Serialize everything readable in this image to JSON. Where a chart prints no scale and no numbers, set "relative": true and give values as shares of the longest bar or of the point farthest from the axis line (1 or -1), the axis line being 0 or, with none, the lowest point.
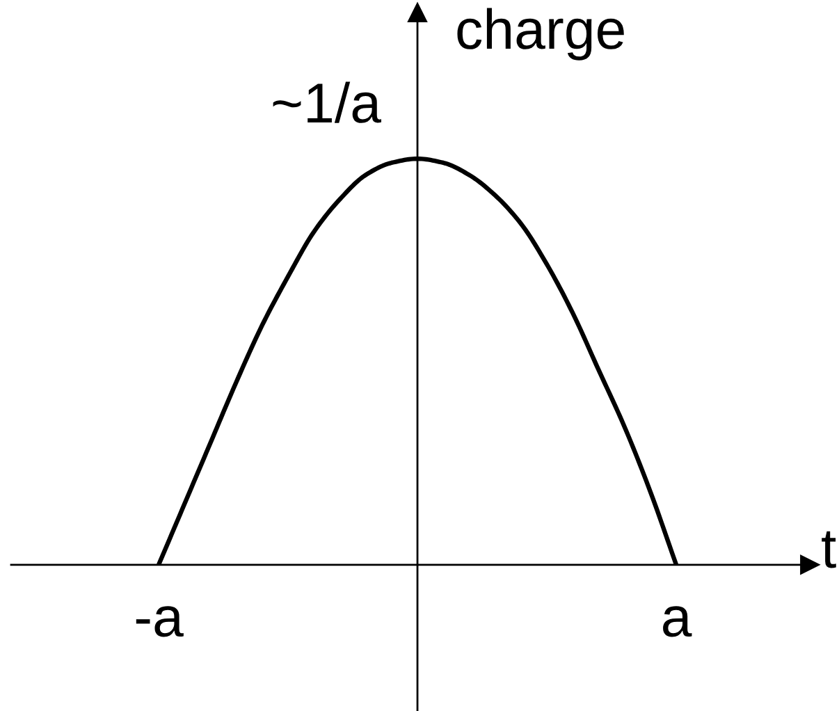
{
  "chart_data": {
    "type": "line",
    "xlabel": "t",
    "ylabel": "charge",
    "relative": true,
    "color": "#000000",
    "categories": [
      "-a",
      null,
      null,
      null,
      null,
      null,
      null,
      null,
      null,
      null,
      null,
      null,
      null,
      null,
      null,
      null,
      null,
      null,
      null,
      null,
      "a"
    ],
    "values": [
      0,
      0.15,
      0.3,
      0.45,
      0.59,
      0.71,
      0.82,
      0.9,
      0.96,
      0.99,
      1,
      0.99,
      0.96,
      0.91,
      0.84,
      0.74,
      0.62,
      0.48,
      0.34,
      0.18,
      0
    ],
    "annotations": [
      "~1/a"
    ]
  }
}
